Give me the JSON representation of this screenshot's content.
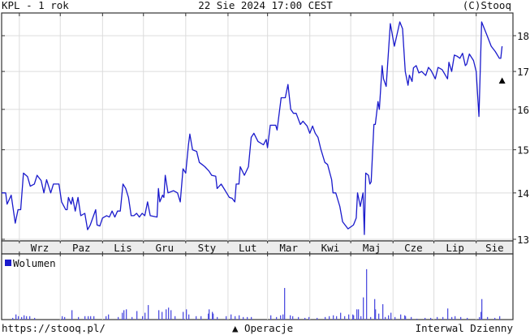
{
  "header": {
    "title": "KPL - 1 rok",
    "timestamp": "22 Sie 2024 17:00 CEST",
    "copyright": "(C)Stooq"
  },
  "footer": {
    "url": "https://stooq.pl/",
    "operations_label": "Operacje",
    "operations_symbol": "▲",
    "interval": "Interwal Dzienny"
  },
  "chart_data": [
    {
      "type": "line",
      "y_scale": "log",
      "ylim": [
        13,
        18.4
      ],
      "y_ticks": [
        13,
        14,
        15,
        16,
        17,
        18
      ],
      "x_range": [
        "2023-08-19",
        "2024-08-22"
      ],
      "x_tick_labels": [
        "Wrz",
        "Paz",
        "Lis",
        "Gru",
        "Sty",
        "Lut",
        "Mar",
        "Kwi",
        "Maj",
        "Cze",
        "Lip",
        "Sie"
      ],
      "grid": true,
      "line_color": "#1a1acc",
      "points": [
        [
          "2023-08-19",
          14.0
        ],
        [
          "2023-08-22",
          14.0
        ],
        [
          "2023-08-23",
          13.75
        ],
        [
          "2023-08-26",
          13.95
        ],
        [
          "2023-08-29",
          13.34
        ],
        [
          "2023-08-31",
          13.63
        ],
        [
          "2023-09-02",
          13.63
        ],
        [
          "2023-09-04",
          14.45
        ],
        [
          "2023-09-07",
          14.37
        ],
        [
          "2023-09-09",
          14.15
        ],
        [
          "2023-09-12",
          14.2
        ],
        [
          "2023-09-14",
          14.4
        ],
        [
          "2023-09-17",
          14.28
        ],
        [
          "2023-09-19",
          14.0
        ],
        [
          "2023-09-21",
          14.3
        ],
        [
          "2023-09-24",
          14.0
        ],
        [
          "2023-09-26",
          14.2
        ],
        [
          "2023-09-30",
          14.2
        ],
        [
          "2023-10-02",
          13.8
        ],
        [
          "2023-10-05",
          13.63
        ],
        [
          "2023-10-06",
          13.63
        ],
        [
          "2023-10-07",
          13.9
        ],
        [
          "2023-10-09",
          13.75
        ],
        [
          "2023-10-10",
          13.9
        ],
        [
          "2023-10-12",
          13.6
        ],
        [
          "2023-10-14",
          13.9
        ],
        [
          "2023-10-16",
          13.5
        ],
        [
          "2023-10-19",
          13.55
        ],
        [
          "2023-10-21",
          13.2
        ],
        [
          "2023-10-23",
          13.3
        ],
        [
          "2023-10-27",
          13.63
        ],
        [
          "2023-10-28",
          13.3
        ],
        [
          "2023-10-30",
          13.28
        ],
        [
          "2023-11-01",
          13.45
        ],
        [
          "2023-11-04",
          13.5
        ],
        [
          "2023-11-06",
          13.47
        ],
        [
          "2023-11-08",
          13.6
        ],
        [
          "2023-11-10",
          13.47
        ],
        [
          "2023-11-12",
          13.6
        ],
        [
          "2023-11-14",
          13.6
        ],
        [
          "2023-11-16",
          14.2
        ],
        [
          "2023-11-18",
          14.1
        ],
        [
          "2023-11-20",
          13.9
        ],
        [
          "2023-11-22",
          13.5
        ],
        [
          "2023-11-24",
          13.5
        ],
        [
          "2023-11-26",
          13.55
        ],
        [
          "2023-11-28",
          13.47
        ],
        [
          "2023-11-30",
          13.55
        ],
        [
          "2023-12-02",
          13.5
        ],
        [
          "2023-12-04",
          13.8
        ],
        [
          "2023-12-06",
          13.5
        ],
        [
          "2023-12-11",
          13.47
        ],
        [
          "2023-12-12",
          14.1
        ],
        [
          "2023-12-13",
          13.8
        ],
        [
          "2023-12-15",
          13.95
        ],
        [
          "2023-12-16",
          13.9
        ],
        [
          "2023-12-17",
          14.4
        ],
        [
          "2023-12-19",
          14.0
        ],
        [
          "2023-12-23",
          14.05
        ],
        [
          "2023-12-26",
          14.0
        ],
        [
          "2023-12-28",
          13.8
        ],
        [
          "2023-12-30",
          14.55
        ],
        [
          "2024-01-01",
          14.45
        ],
        [
          "2024-01-03",
          15.12
        ],
        [
          "2024-01-04",
          15.38
        ],
        [
          "2024-01-06",
          15.0
        ],
        [
          "2024-01-09",
          14.96
        ],
        [
          "2024-01-11",
          14.7
        ],
        [
          "2024-01-13",
          14.65
        ],
        [
          "2024-01-15",
          14.6
        ],
        [
          "2024-01-18",
          14.5
        ],
        [
          "2024-01-20",
          14.4
        ],
        [
          "2024-01-23",
          14.38
        ],
        [
          "2024-01-24",
          14.1
        ],
        [
          "2024-01-27",
          14.2
        ],
        [
          "2024-01-29",
          14.1
        ],
        [
          "2024-01-31",
          14.0
        ],
        [
          "2024-02-02",
          13.9
        ],
        [
          "2024-02-04",
          13.88
        ],
        [
          "2024-02-06",
          13.8
        ],
        [
          "2024-02-07",
          14.2
        ],
        [
          "2024-02-09",
          14.2
        ],
        [
          "2024-02-10",
          14.6
        ],
        [
          "2024-02-13",
          14.4
        ],
        [
          "2024-02-16",
          14.6
        ],
        [
          "2024-02-18",
          15.3
        ],
        [
          "2024-02-20",
          15.4
        ],
        [
          "2024-02-23",
          15.2
        ],
        [
          "2024-02-27",
          15.12
        ],
        [
          "2024-02-29",
          15.25
        ],
        [
          "2024-03-01",
          15.05
        ],
        [
          "2024-03-03",
          15.6
        ],
        [
          "2024-03-07",
          15.6
        ],
        [
          "2024-03-08",
          15.48
        ],
        [
          "2024-03-11",
          16.3
        ],
        [
          "2024-03-14",
          16.3
        ],
        [
          "2024-03-16",
          16.65
        ],
        [
          "2024-03-18",
          16.0
        ],
        [
          "2024-03-20",
          15.9
        ],
        [
          "2024-03-22",
          15.9
        ],
        [
          "2024-03-25",
          15.62
        ],
        [
          "2024-03-27",
          15.7
        ],
        [
          "2024-03-30",
          15.58
        ],
        [
          "2024-04-01",
          15.4
        ],
        [
          "2024-04-03",
          15.58
        ],
        [
          "2024-04-05",
          15.4
        ],
        [
          "2024-04-07",
          15.3
        ],
        [
          "2024-04-09",
          15.02
        ],
        [
          "2024-04-12",
          14.7
        ],
        [
          "2024-04-14",
          14.65
        ],
        [
          "2024-04-17",
          14.3
        ],
        [
          "2024-04-18",
          14.0
        ],
        [
          "2024-04-20",
          14.0
        ],
        [
          "2024-04-23",
          13.7
        ],
        [
          "2024-04-25",
          13.37
        ],
        [
          "2024-04-29",
          13.22
        ],
        [
          "2024-05-03",
          13.3
        ],
        [
          "2024-05-05",
          13.45
        ],
        [
          "2024-05-06",
          14.0
        ],
        [
          "2024-05-08",
          13.7
        ],
        [
          "2024-05-10",
          14.0
        ],
        [
          "2024-05-11",
          13.1
        ],
        [
          "2024-05-12",
          14.45
        ],
        [
          "2024-05-14",
          14.4
        ],
        [
          "2024-05-15",
          14.2
        ],
        [
          "2024-05-16",
          14.25
        ],
        [
          "2024-05-18",
          15.62
        ],
        [
          "2024-05-19",
          15.62
        ],
        [
          "2024-05-21",
          16.2
        ],
        [
          "2024-05-22",
          16.0
        ],
        [
          "2024-05-24",
          17.16
        ],
        [
          "2024-05-25",
          16.8
        ],
        [
          "2024-05-27",
          16.6
        ],
        [
          "2024-05-30",
          18.35
        ],
        [
          "2024-06-02",
          17.7
        ],
        [
          "2024-06-04",
          18.05
        ],
        [
          "2024-06-06",
          18.4
        ],
        [
          "2024-06-08",
          18.2
        ],
        [
          "2024-06-10",
          17.0
        ],
        [
          "2024-06-12",
          16.63
        ],
        [
          "2024-06-13",
          16.9
        ],
        [
          "2024-06-15",
          16.73
        ],
        [
          "2024-06-16",
          17.1
        ],
        [
          "2024-06-18",
          17.16
        ],
        [
          "2024-06-20",
          16.96
        ],
        [
          "2024-06-22",
          17.0
        ],
        [
          "2024-06-25",
          16.89
        ],
        [
          "2024-06-27",
          17.11
        ],
        [
          "2024-06-29",
          17.02
        ],
        [
          "2024-07-02",
          16.8
        ],
        [
          "2024-07-04",
          17.11
        ],
        [
          "2024-07-07",
          17.05
        ],
        [
          "2024-07-11",
          16.8
        ],
        [
          "2024-07-12",
          17.25
        ],
        [
          "2024-07-14",
          17.0
        ],
        [
          "2024-07-16",
          17.45
        ],
        [
          "2024-07-18",
          17.42
        ],
        [
          "2024-07-20",
          17.36
        ],
        [
          "2024-07-22",
          17.5
        ],
        [
          "2024-07-24",
          17.16
        ],
        [
          "2024-07-25",
          17.2
        ],
        [
          "2024-07-27",
          17.48
        ],
        [
          "2024-07-30",
          17.3
        ],
        [
          "2024-08-01",
          17.0
        ],
        [
          "2024-08-03",
          15.82
        ],
        [
          "2024-08-05",
          18.4
        ],
        [
          "2024-08-07",
          18.2
        ],
        [
          "2024-08-09",
          18.0
        ],
        [
          "2024-08-12",
          17.7
        ],
        [
          "2024-08-15",
          17.55
        ],
        [
          "2024-08-18",
          17.36
        ],
        [
          "2024-08-19",
          17.36
        ],
        [
          "2024-08-20",
          17.7
        ]
      ],
      "operations": [
        {
          "date": "2024-08-20",
          "price": 16.75,
          "symbol": "▲"
        }
      ]
    },
    {
      "type": "bar",
      "legend": "Wolumen",
      "legend_placement": "top-left",
      "bar_color": "#5050e0",
      "legend_color": "#1a1acc",
      "ylim": [
        0,
        75
      ],
      "values": [
        [
          "2023-08-27",
          2
        ],
        [
          "2023-08-29",
          6
        ],
        [
          "2023-08-31",
          4
        ],
        [
          "2023-09-02",
          3
        ],
        [
          "2023-09-04",
          5
        ],
        [
          "2023-09-06",
          4
        ],
        [
          "2023-09-08",
          4
        ],
        [
          "2023-09-12",
          2
        ],
        [
          "2023-10-02",
          4
        ],
        [
          "2023-10-04",
          3
        ],
        [
          "2023-10-09",
          11
        ],
        [
          "2023-10-14",
          3
        ],
        [
          "2023-10-19",
          4
        ],
        [
          "2023-10-21",
          4
        ],
        [
          "2023-10-23",
          4
        ],
        [
          "2023-10-25",
          4
        ],
        [
          "2023-11-03",
          4
        ],
        [
          "2023-11-05",
          6
        ],
        [
          "2023-11-12",
          3
        ],
        [
          "2023-11-15",
          8
        ],
        [
          "2023-11-16",
          11
        ],
        [
          "2023-11-18",
          12
        ],
        [
          "2023-11-22",
          3
        ],
        [
          "2023-11-26",
          10
        ],
        [
          "2023-11-30",
          4
        ],
        [
          "2023-12-02",
          8
        ],
        [
          "2023-12-04",
          17
        ],
        [
          "2023-12-12",
          11
        ],
        [
          "2023-12-14",
          9
        ],
        [
          "2023-12-17",
          12
        ],
        [
          "2023-12-19",
          14
        ],
        [
          "2023-12-21",
          11
        ],
        [
          "2023-12-24",
          4
        ],
        [
          "2023-12-30",
          9
        ],
        [
          "2024-01-01",
          12
        ],
        [
          "2024-01-03",
          6
        ],
        [
          "2024-01-08",
          4
        ],
        [
          "2024-01-12",
          4
        ],
        [
          "2024-01-17",
          7
        ],
        [
          "2024-01-18",
          12
        ],
        [
          "2024-01-20",
          9
        ],
        [
          "2024-01-21",
          7
        ],
        [
          "2024-01-24",
          3
        ],
        [
          "2024-01-30",
          4
        ],
        [
          "2024-02-03",
          6
        ],
        [
          "2024-02-06",
          4
        ],
        [
          "2024-02-09",
          5
        ],
        [
          "2024-02-12",
          3
        ],
        [
          "2024-02-15",
          3
        ],
        [
          "2024-02-18",
          3
        ],
        [
          "2024-03-03",
          5
        ],
        [
          "2024-03-07",
          3
        ],
        [
          "2024-03-10",
          5
        ],
        [
          "2024-03-12",
          6
        ],
        [
          "2024-03-13",
          37
        ],
        [
          "2024-03-17",
          5
        ],
        [
          "2024-03-19",
          4
        ],
        [
          "2024-03-23",
          3
        ],
        [
          "2024-03-28",
          2
        ],
        [
          "2024-03-31",
          3
        ],
        [
          "2024-04-06",
          2
        ],
        [
          "2024-04-12",
          3
        ],
        [
          "2024-04-15",
          4
        ],
        [
          "2024-04-18",
          5
        ],
        [
          "2024-04-20",
          4
        ],
        [
          "2024-04-23",
          8
        ],
        [
          "2024-04-26",
          4
        ],
        [
          "2024-04-29",
          6
        ],
        [
          "2024-05-02",
          6
        ],
        [
          "2024-05-03",
          5
        ],
        [
          "2024-05-05",
          12
        ],
        [
          "2024-05-06",
          12
        ],
        [
          "2024-05-08",
          4
        ],
        [
          "2024-05-10",
          26
        ],
        [
          "2024-05-12",
          59
        ],
        [
          "2024-05-15",
          3
        ],
        [
          "2024-05-18",
          24
        ],
        [
          "2024-05-19",
          12
        ],
        [
          "2024-05-21",
          7
        ],
        [
          "2024-05-24",
          18
        ],
        [
          "2024-05-26",
          3
        ],
        [
          "2024-05-28",
          5
        ],
        [
          "2024-05-30",
          8
        ],
        [
          "2024-06-02",
          3
        ],
        [
          "2024-06-06",
          6
        ],
        [
          "2024-06-09",
          5
        ],
        [
          "2024-06-10",
          4
        ],
        [
          "2024-06-14",
          3
        ],
        [
          "2024-06-18",
          1
        ],
        [
          "2024-06-24",
          2
        ],
        [
          "2024-06-28",
          2
        ],
        [
          "2024-07-03",
          3
        ],
        [
          "2024-07-07",
          3
        ],
        [
          "2024-07-11",
          13
        ],
        [
          "2024-07-14",
          3
        ],
        [
          "2024-07-16",
          4
        ],
        [
          "2024-07-20",
          3
        ],
        [
          "2024-07-25",
          2
        ],
        [
          "2024-08-03",
          3
        ],
        [
          "2024-08-04",
          9
        ],
        [
          "2024-08-05",
          24
        ],
        [
          "2024-08-09",
          3
        ],
        [
          "2024-08-14",
          2
        ],
        [
          "2024-08-18",
          4
        ]
      ]
    }
  ]
}
